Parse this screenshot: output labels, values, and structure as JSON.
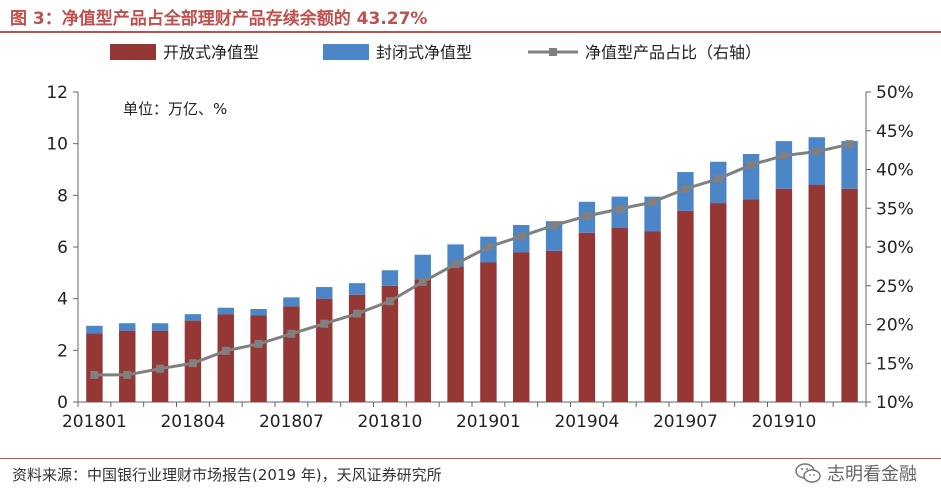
{
  "figure_title": "图 3：净值型产品占全部理财产品存续余额的 43.27%",
  "source_note": "资料来源：中国银行业理财市场报告(2019 年)，天风证券研究所",
  "watermark_text": "志明看金融",
  "chart_data": {
    "type": "bar",
    "stacked": true,
    "title": "",
    "unit_label": "单位：万亿、%",
    "categories": [
      "201801",
      "201802",
      "201803",
      "201804",
      "201805",
      "201806",
      "201807",
      "201808",
      "201809",
      "201810",
      "201811",
      "201812",
      "201901",
      "201902",
      "201903",
      "201904",
      "201905",
      "201906",
      "201907",
      "201908",
      "201909",
      "201910",
      "201911",
      "201912"
    ],
    "x_tick_labels": [
      "201801",
      "201804",
      "201807",
      "201810",
      "201901",
      "201904",
      "201907",
      "201910"
    ],
    "series": [
      {
        "name": "开放式净值型",
        "axis": "left",
        "color": "#953735",
        "values": [
          2.65,
          2.75,
          2.75,
          3.15,
          3.4,
          3.35,
          3.7,
          4.0,
          4.15,
          4.5,
          4.75,
          5.25,
          5.4,
          5.8,
          5.85,
          6.55,
          6.75,
          6.6,
          7.4,
          7.7,
          7.85,
          8.25,
          8.4,
          8.25
        ]
      },
      {
        "name": "封闭式净值型",
        "axis": "left",
        "color": "#4a86c8",
        "values": [
          0.3,
          0.3,
          0.3,
          0.25,
          0.25,
          0.25,
          0.35,
          0.45,
          0.45,
          0.6,
          0.95,
          0.85,
          1.0,
          1.05,
          1.15,
          1.2,
          1.2,
          1.35,
          1.5,
          1.6,
          1.75,
          1.85,
          1.85,
          1.85
        ]
      },
      {
        "name": "净值型产品占比（右轴）",
        "axis": "right",
        "type": "line",
        "color": "#808080",
        "values": [
          13.5,
          13.5,
          14.3,
          15.0,
          16.6,
          17.5,
          18.8,
          20.1,
          21.4,
          23.0,
          25.5,
          27.8,
          30.0,
          31.4,
          32.8,
          34.0,
          34.9,
          35.8,
          37.5,
          38.8,
          40.6,
          41.8,
          42.3,
          43.27
        ]
      }
    ],
    "y_left": {
      "min": 0,
      "max": 12,
      "ticks": [
        0,
        2,
        4,
        6,
        8,
        10,
        12
      ]
    },
    "y_right": {
      "min": 10,
      "max": 50,
      "ticks": [
        "10%",
        "15%",
        "20%",
        "25%",
        "30%",
        "35%",
        "40%",
        "45%",
        "50%"
      ]
    },
    "legend_position": "top",
    "grid": false
  }
}
